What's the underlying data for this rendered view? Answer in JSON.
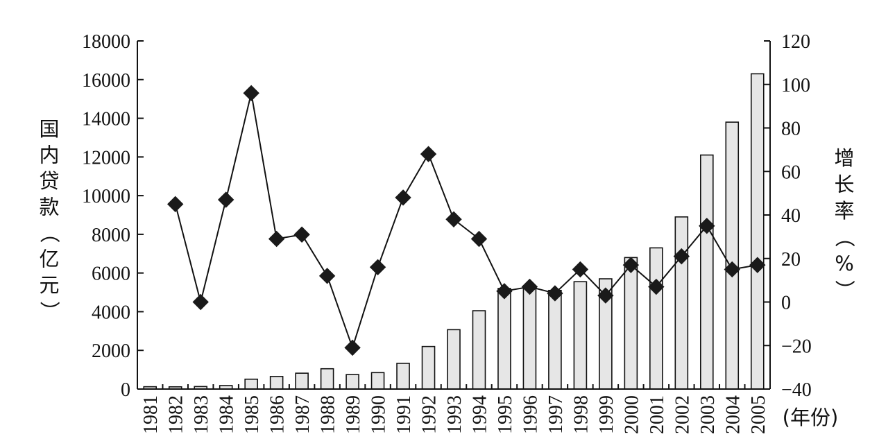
{
  "chart_data": {
    "type": "bar+line",
    "title": "",
    "categories": [
      "1981",
      "1982",
      "1983",
      "1984",
      "1985",
      "1986",
      "1987",
      "1988",
      "1989",
      "1990",
      "1991",
      "1992",
      "1993",
      "1994",
      "1995",
      "1996",
      "1997",
      "1998",
      "1999",
      "2000",
      "2001",
      "2002",
      "2003",
      "2004",
      "2005"
    ],
    "xlabel": "(年份)",
    "ylabel_left": "国内贷款（亿元）",
    "ylabel_right": "增长率（%）",
    "ylim_left": [
      0,
      18000
    ],
    "ylim_right": [
      -40,
      120
    ],
    "yticks_left": [
      "0",
      "2000",
      "4000",
      "6000",
      "8000",
      "10000",
      "12000",
      "14000",
      "16000",
      "18000"
    ],
    "yticks_right": [
      "-40",
      "-20",
      "0",
      "20",
      "40",
      "60",
      "80",
      "100",
      "120"
    ],
    "grid": false,
    "legend": "none",
    "series": [
      {
        "kind": "bar",
        "axis": "left",
        "values": [
          120,
          115,
          130,
          180,
          510,
          650,
          820,
          1050,
          750,
          850,
          1330,
          2200,
          3070,
          4050,
          5200,
          5300,
          5100,
          5550,
          5700,
          6800,
          7300,
          8900,
          12100,
          13800,
          16300
        ]
      },
      {
        "kind": "line",
        "axis": "right",
        "marker": "diamond",
        "values": [
          null,
          45,
          0,
          47,
          96,
          29,
          31,
          12,
          -21,
          16,
          48,
          68,
          38,
          29,
          5,
          7,
          4,
          15,
          3,
          17,
          7,
          21,
          35,
          15,
          17
        ]
      }
    ]
  }
}
